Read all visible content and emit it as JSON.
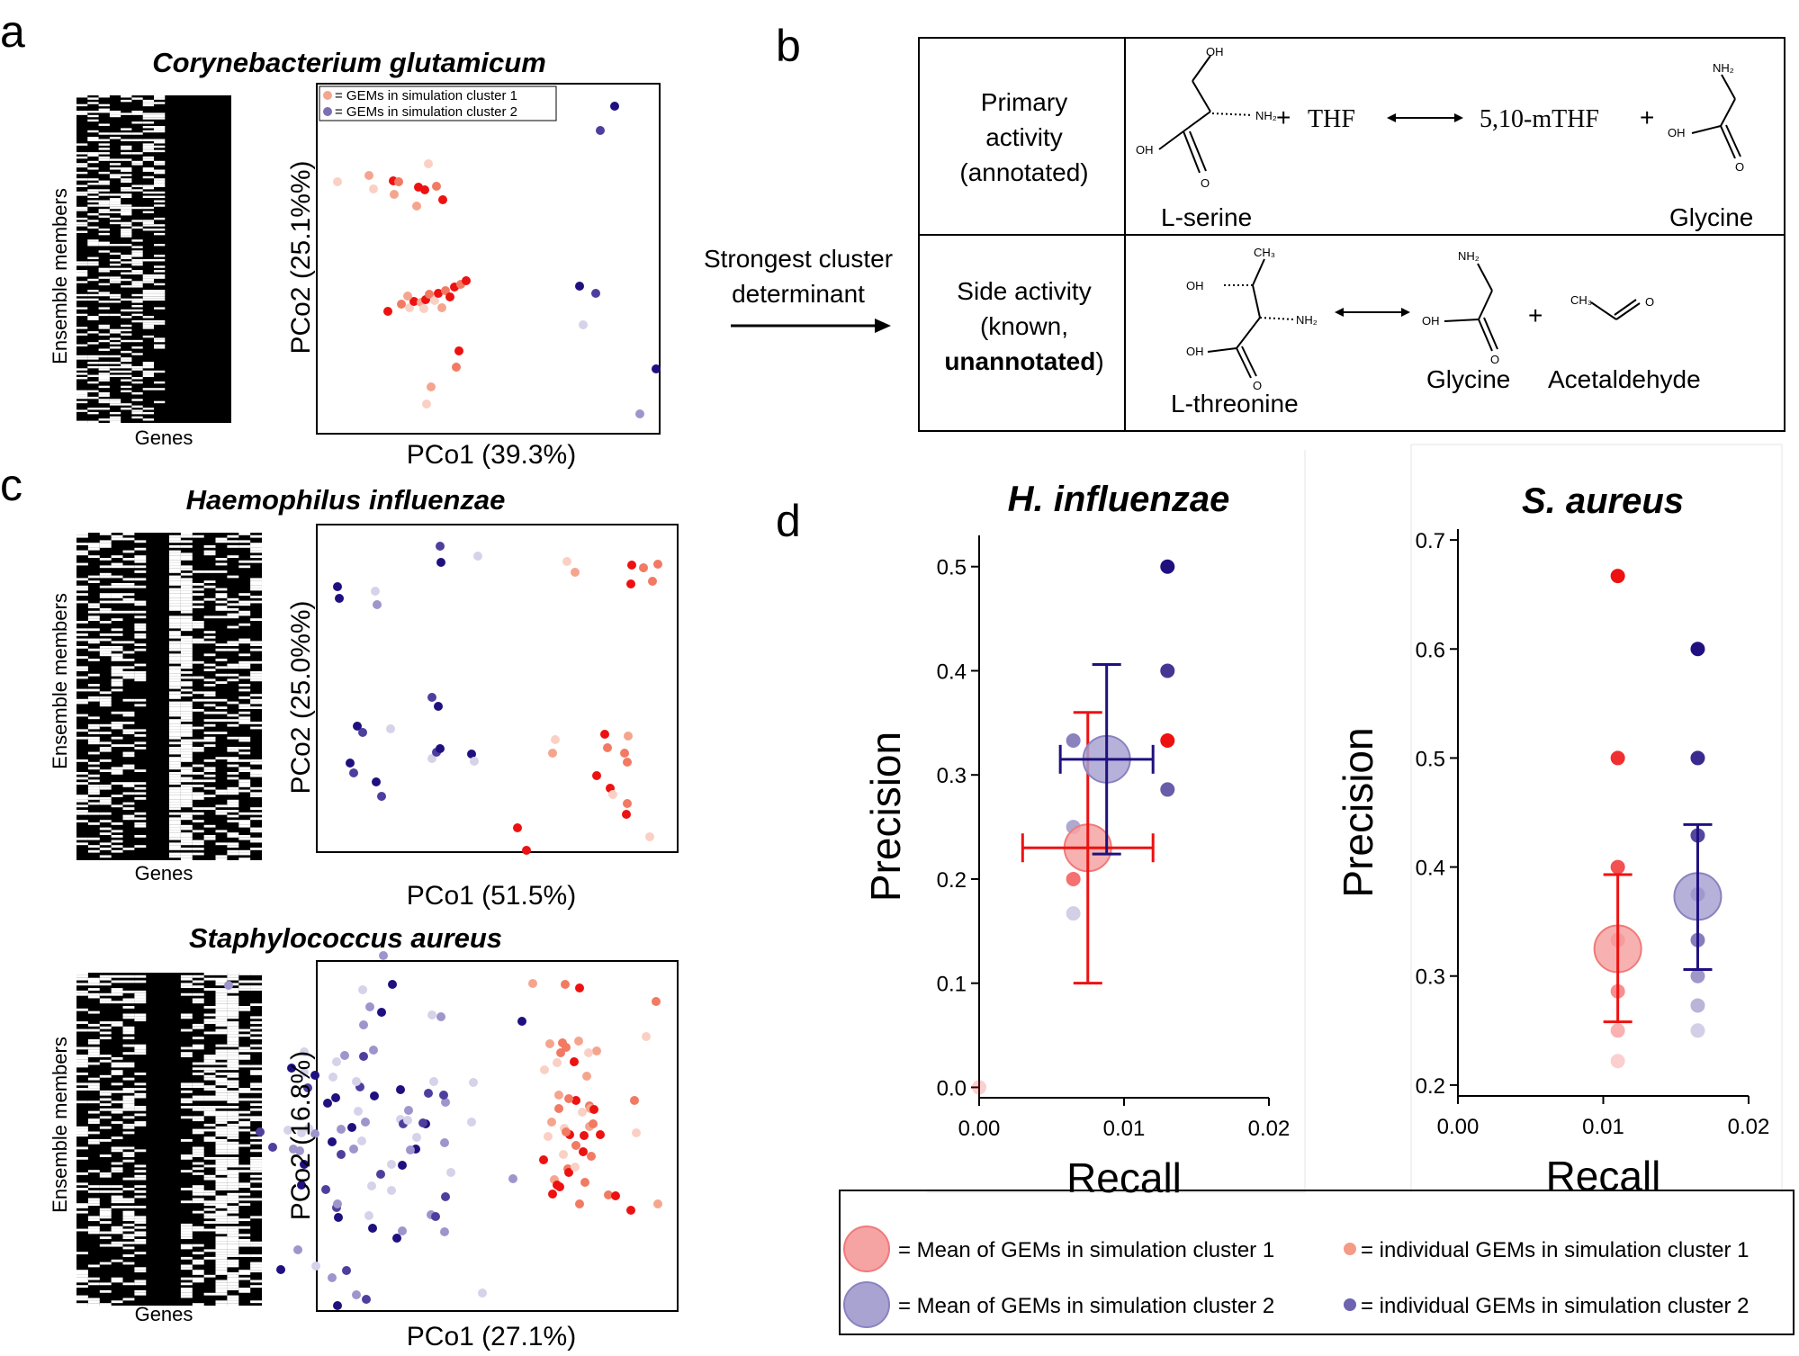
{
  "panels": {
    "a": {
      "letter": "a",
      "title": "Corynebacterium glutamicum",
      "heatmap_ylabel": "Ensemble members",
      "heatmap_xlabel": "Genes",
      "pco_xlabel": "PCo1 (39.3%)",
      "pco_ylabel": "PCo2 (25.1%%)",
      "legend": [
        "= GEMs in simulation cluster 1",
        "= GEMs in simulation cluster 2"
      ]
    },
    "b": {
      "letter": "b",
      "arrow_label_1": "Strongest cluster",
      "arrow_label_2": "determinant",
      "row1_label": [
        "Primary",
        "activity",
        "(annotated)"
      ],
      "row2_label_1": "Side activity",
      "row2_label_2": "(known,",
      "row2_label_3_bold": "unannotated",
      "row2_label_3_tail": ")",
      "reaction1": {
        "plus1": "+",
        "thf": "THF",
        "arrow": "⟷",
        "mthf": "5,10-mTHF",
        "plus2": "+",
        "left_name": "L-serine",
        "right_name": "Glycine"
      },
      "reaction2": {
        "plus": "+",
        "names": [
          "L-threonine",
          "Glycine",
          "Acetaldehyde"
        ]
      },
      "chem_atoms": {
        "oh": "OH",
        "nh2": "NH₂",
        "o": "O",
        "ch3": "CH₃"
      }
    },
    "c": {
      "letter": "c",
      "top": {
        "title": "Haemophilus influenzae",
        "pco_xlabel": "PCo1 (51.5%)",
        "pco_ylabel": "PCo2 (25.0%%)",
        "heatmap_ylabel": "Ensemble members",
        "heatmap_xlabel": "Genes"
      },
      "bottom": {
        "title": "Staphylococcus aureus",
        "pco_xlabel": "PCo1 (27.1%)",
        "pco_ylabel": "PCo2 (16.8%)",
        "heatmap_ylabel": "Ensemble members",
        "heatmap_xlabel": "Genes"
      }
    },
    "d": {
      "letter": "d",
      "legend": {
        "mean1": "= Mean of GEMs in simulation cluster 1",
        "mean2": "= Mean of GEMs in simulation cluster 2",
        "ind1": "= individual GEMs in simulation cluster 1",
        "ind2": "= individual GEMs in simulation cluster 2"
      }
    }
  },
  "colors": {
    "cluster1": "#ee1111",
    "cluster2": "#1f1080",
    "mean1_fill": "#f6a3a3",
    "mean2_fill": "#a9a3d1"
  },
  "chart_data": [
    {
      "type": "scatter",
      "title": "H. influenzae",
      "xlabel": "Recall",
      "ylabel": "Precision",
      "xlim": [
        0,
        0.02
      ],
      "ylim": [
        -0.01,
        0.53
      ],
      "xticks": [
        "0.00",
        "0.01",
        "0.02"
      ],
      "yticks": [
        "0.0",
        "0.1",
        "0.2",
        "0.3",
        "0.4",
        "0.5"
      ],
      "series": [
        {
          "cluster": 1,
          "points": [
            [
              0.0,
              0.0
            ],
            [
              0.0065,
              0.2
            ],
            [
              0.013,
              0.333
            ]
          ],
          "mean": [
            0.0075,
            0.23
          ],
          "xerr": 0.0045,
          "yerr": [
            0.1,
            0.36
          ]
        },
        {
          "cluster": 2,
          "points": [
            [
              0.0065,
              0.167
            ],
            [
              0.0065,
              0.25
            ],
            [
              0.0065,
              0.333
            ],
            [
              0.013,
              0.286
            ],
            [
              0.013,
              0.4
            ],
            [
              0.013,
              0.5
            ]
          ],
          "mean": [
            0.0088,
            0.315
          ],
          "xerr": 0.0032,
          "yerr": [
            0.224,
            0.406
          ]
        }
      ]
    },
    {
      "type": "scatter",
      "title": "S. aureus",
      "xlabel": "Recall",
      "ylabel": "Precision",
      "xlim": [
        0,
        0.02
      ],
      "ylim": [
        0.19,
        0.71
      ],
      "xticks": [
        "0.00",
        "0.01",
        "0.02"
      ],
      "yticks": [
        "0.2",
        "0.3",
        "0.4",
        "0.5",
        "0.6",
        "0.7"
      ],
      "series": [
        {
          "cluster": 1,
          "points": [
            [
              0.011,
              0.222
            ],
            [
              0.011,
              0.25
            ],
            [
              0.011,
              0.286
            ],
            [
              0.011,
              0.333
            ],
            [
              0.011,
              0.4
            ],
            [
              0.011,
              0.5
            ],
            [
              0.011,
              0.667
            ]
          ],
          "mean": [
            0.011,
            0.325
          ],
          "yerr": [
            0.258,
            0.393
          ]
        },
        {
          "cluster": 2,
          "points": [
            [
              0.0165,
              0.25
            ],
            [
              0.0165,
              0.273
            ],
            [
              0.0165,
              0.3
            ],
            [
              0.0165,
              0.333
            ],
            [
              0.0165,
              0.375
            ],
            [
              0.0165,
              0.429
            ],
            [
              0.0165,
              0.5
            ],
            [
              0.0165,
              0.6
            ]
          ],
          "mean": [
            0.0165,
            0.373
          ],
          "yerr": [
            0.306,
            0.439
          ]
        }
      ]
    }
  ]
}
